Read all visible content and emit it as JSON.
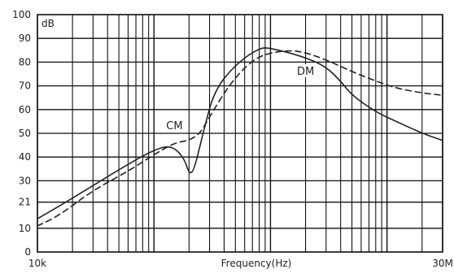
{
  "chart_data": {
    "type": "line",
    "title": "",
    "ylabel": "dB",
    "xlabel": "Frequency(Hz)",
    "x_scale": "log",
    "xlim": [
      10000,
      30000000
    ],
    "ylim": [
      0,
      100
    ],
    "y_ticks": [
      0,
      10,
      21,
      30,
      40,
      50,
      60,
      70,
      80,
      90,
      100
    ],
    "y_tick_labels": [
      "0",
      "10",
      "21",
      "30",
      "40",
      "50",
      "60",
      "70",
      "80",
      "90",
      "100"
    ],
    "x_tick_labels": [
      {
        "x": 10000,
        "label": "10k"
      },
      {
        "x": 30000000,
        "label": "30M"
      }
    ],
    "grid": true,
    "series": [
      {
        "name": "DM",
        "style": "solid",
        "color": "#222222",
        "points": [
          [
            10000,
            14
          ],
          [
            15000,
            19
          ],
          [
            30000,
            28
          ],
          [
            60000,
            37
          ],
          [
            100000,
            43
          ],
          [
            140000,
            45
          ],
          [
            180000,
            40
          ],
          [
            200000,
            33
          ],
          [
            220000,
            34
          ],
          [
            270000,
            52
          ],
          [
            330000,
            68
          ],
          [
            500000,
            79
          ],
          [
            800000,
            86
          ],
          [
            1000000,
            86
          ],
          [
            2000000,
            82
          ],
          [
            3000000,
            78
          ],
          [
            4000000,
            72
          ],
          [
            5000000,
            66
          ],
          [
            8000000,
            59
          ],
          [
            12000000,
            55
          ],
          [
            20000000,
            50
          ],
          [
            30000000,
            47
          ]
        ]
      },
      {
        "name": "CM",
        "style": "dashed",
        "color": "#222222",
        "points": [
          [
            10000,
            11
          ],
          [
            15000,
            15
          ],
          [
            30000,
            26
          ],
          [
            60000,
            34
          ],
          [
            100000,
            41
          ],
          [
            150000,
            46
          ],
          [
            200000,
            47
          ],
          [
            250000,
            50
          ],
          [
            300000,
            57
          ],
          [
            450000,
            71
          ],
          [
            700000,
            81
          ],
          [
            1000000,
            84
          ],
          [
            1500000,
            85
          ],
          [
            2000000,
            84
          ],
          [
            3000000,
            81
          ],
          [
            5000000,
            76
          ],
          [
            8000000,
            72
          ],
          [
            12000000,
            69
          ],
          [
            20000000,
            67
          ],
          [
            30000000,
            66
          ]
        ]
      }
    ],
    "annotations": [
      {
        "text": "DM",
        "x": 2000000,
        "y": 75
      },
      {
        "text": "CM",
        "x": 150000,
        "y": 52
      }
    ],
    "colors": {
      "grid": "#111111",
      "background": "#ffffff",
      "lines": "#222222"
    }
  }
}
